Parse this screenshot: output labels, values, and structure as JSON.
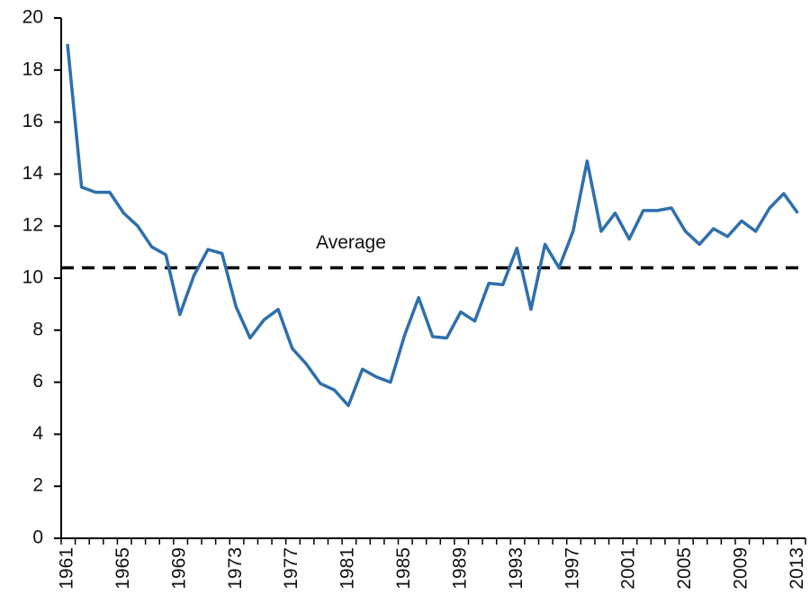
{
  "chart_data": {
    "type": "line",
    "x": [
      1961,
      1962,
      1963,
      1964,
      1965,
      1966,
      1967,
      1968,
      1969,
      1970,
      1971,
      1972,
      1973,
      1974,
      1975,
      1976,
      1977,
      1978,
      1979,
      1980,
      1981,
      1982,
      1983,
      1984,
      1985,
      1986,
      1987,
      1988,
      1989,
      1990,
      1991,
      1992,
      1993,
      1994,
      1995,
      1996,
      1997,
      1998,
      1999,
      2000,
      2001,
      2002,
      2003,
      2004,
      2005,
      2006,
      2007,
      2008,
      2009,
      2010,
      2011,
      2012,
      2013
    ],
    "series": [
      {
        "color": "#2e6fad",
        "values": [
          19.0,
          13.5,
          13.3,
          13.3,
          12.5,
          12.0,
          11.2,
          10.9,
          8.6,
          10.1,
          11.1,
          10.95,
          8.9,
          7.7,
          8.4,
          8.8,
          7.3,
          6.7,
          5.95,
          5.7,
          5.1,
          6.5,
          6.2,
          6.0,
          7.8,
          9.25,
          7.75,
          7.7,
          8.7,
          8.35,
          9.8,
          9.75,
          11.15,
          8.8,
          11.3,
          10.4,
          11.8,
          14.5,
          11.8,
          12.5,
          11.5,
          12.6,
          12.6,
          12.7,
          11.8,
          11.3,
          11.9,
          11.6,
          12.2,
          11.8,
          12.7,
          13.25,
          12.5
        ]
      }
    ],
    "average": {
      "label": "Average",
      "value": 10.4
    },
    "xlim": [
      1960.55,
      2013.55
    ],
    "xticks": [
      1961,
      1965,
      1969,
      1973,
      1977,
      1981,
      1985,
      1989,
      1993,
      1997,
      2001,
      2005,
      2009,
      2013
    ],
    "ylim": [
      0,
      20
    ],
    "yticks": [
      0,
      2,
      4,
      6,
      8,
      10,
      12,
      14,
      16,
      18,
      20
    ],
    "grid": false
  }
}
